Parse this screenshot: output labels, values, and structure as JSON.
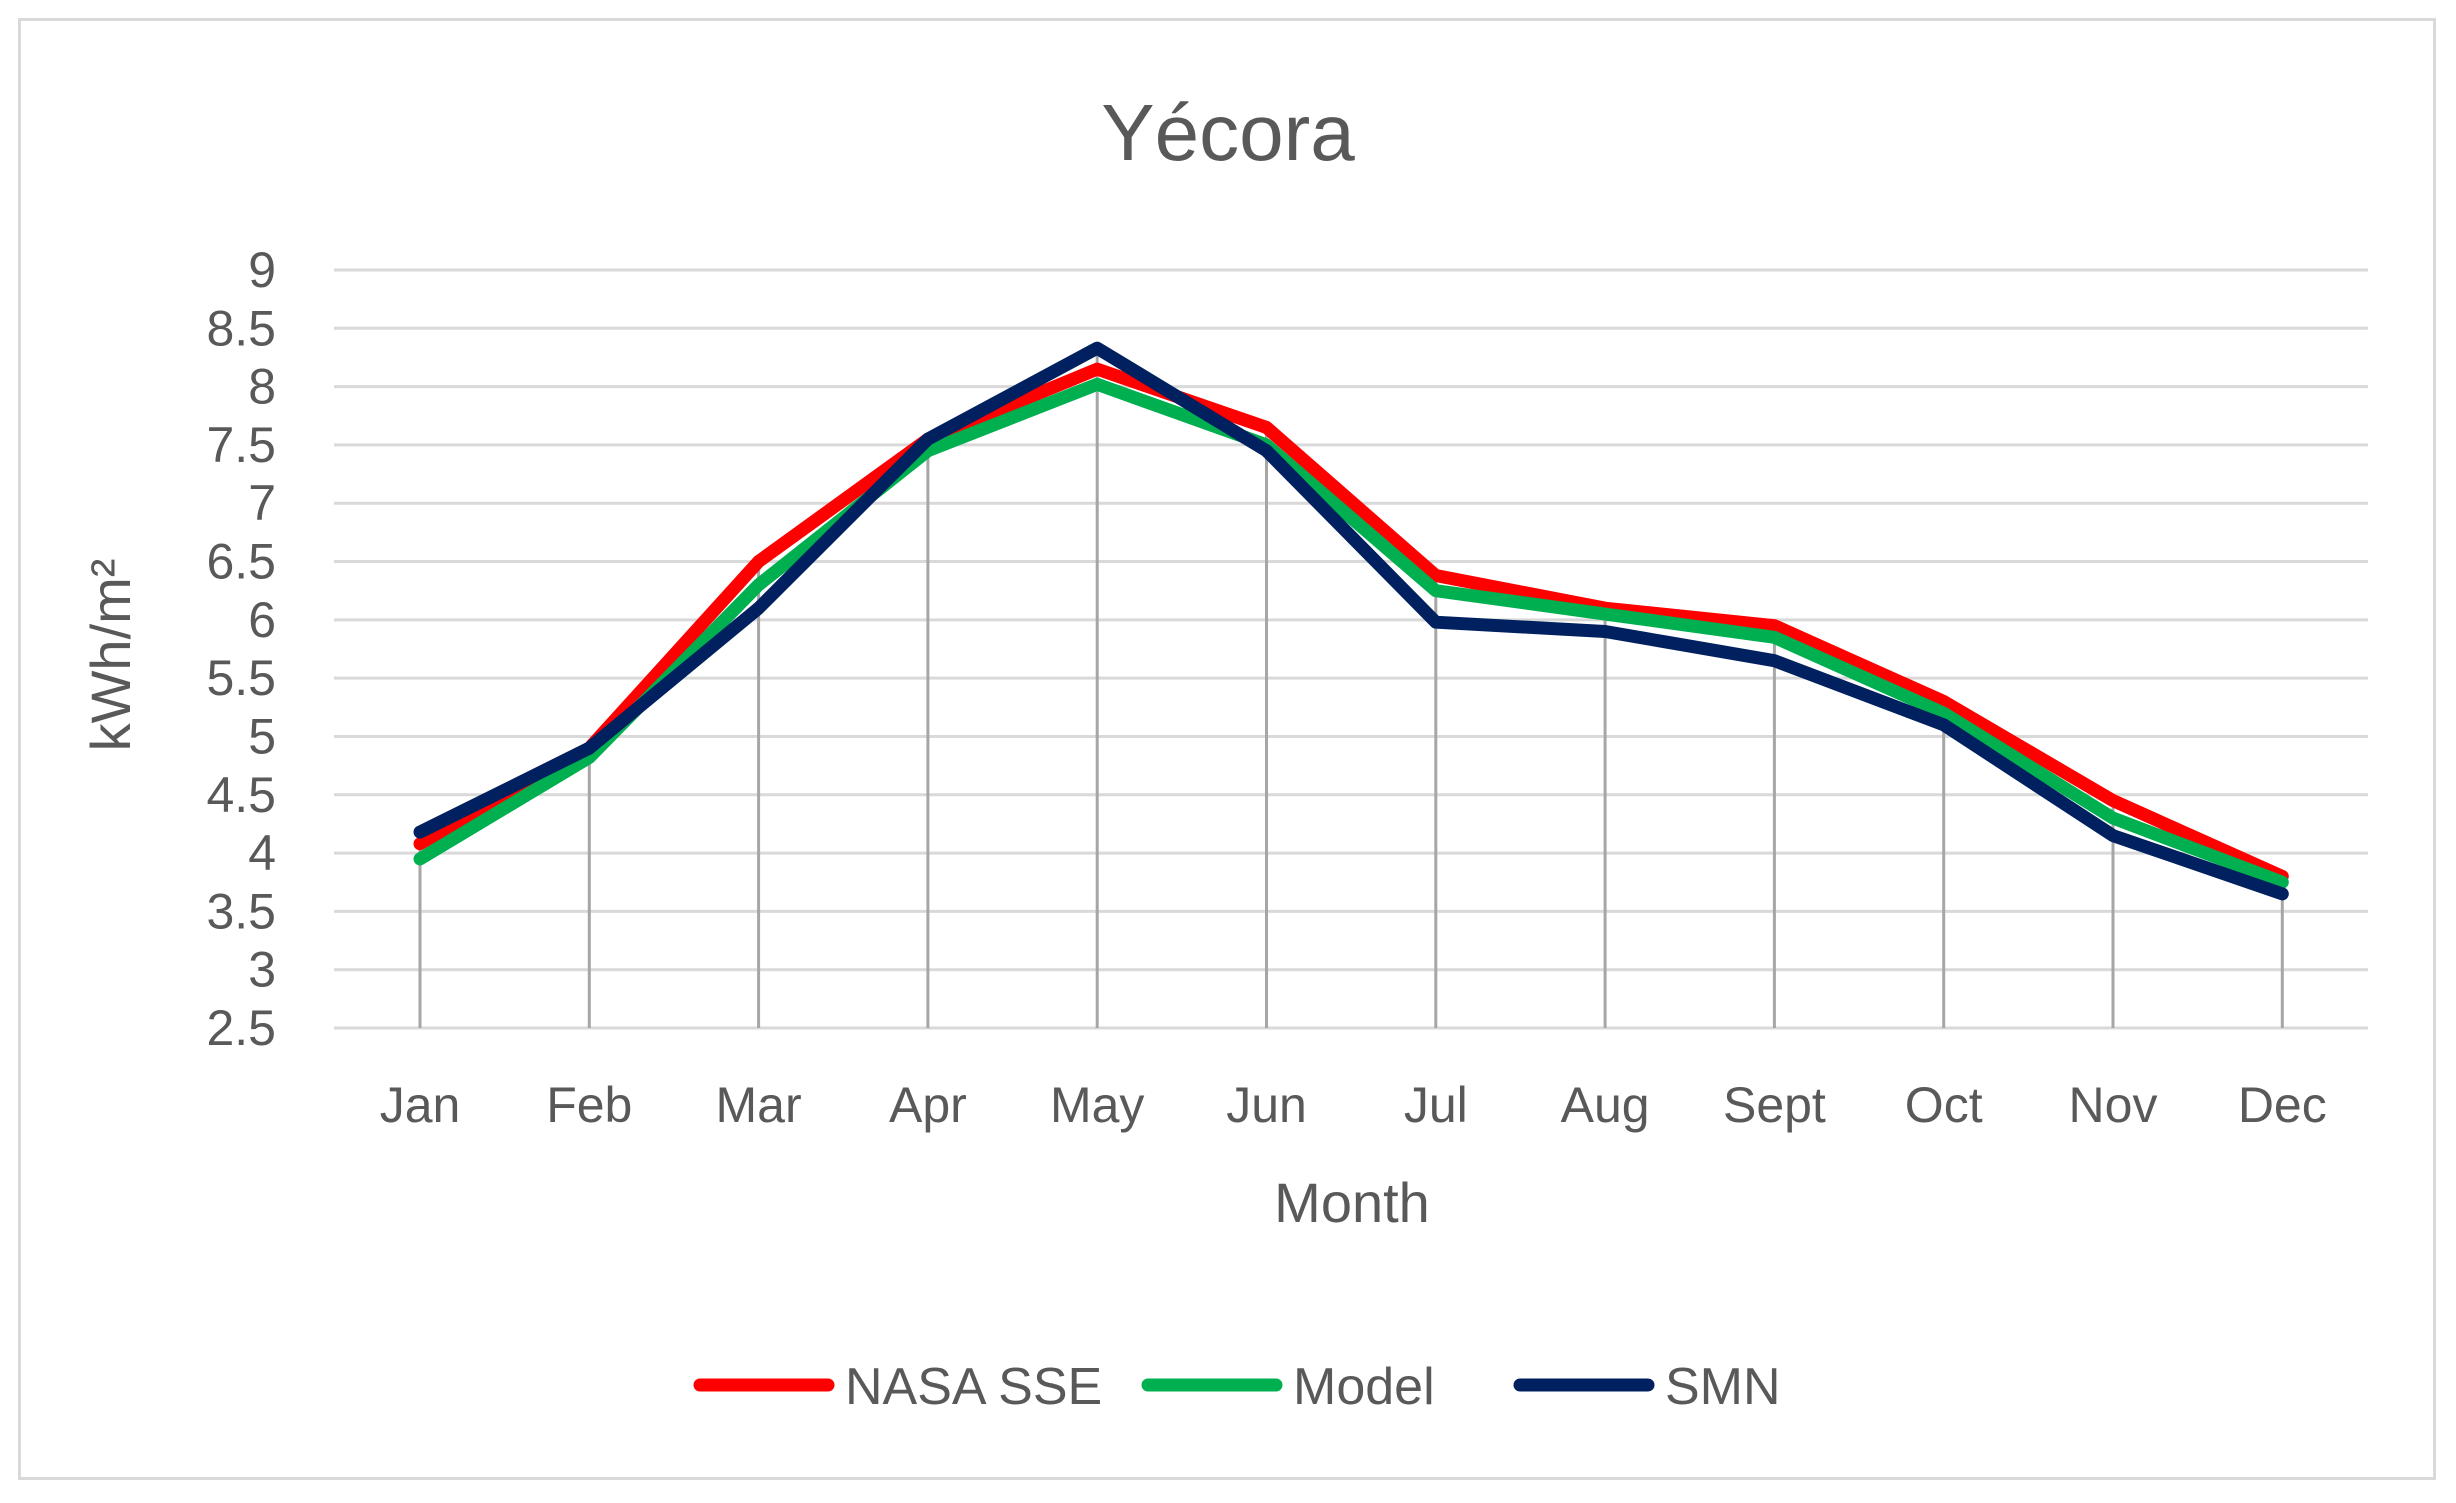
{
  "chart_data": {
    "type": "line",
    "title": "Yécora",
    "xlabel": "Month",
    "ylabel": "kWh/m²",
    "categories": [
      "Jan",
      "Feb",
      "Mar",
      "Apr",
      "May",
      "Jun",
      "Jul",
      "Aug",
      "Sept",
      "Oct",
      "Nov",
      "Dec"
    ],
    "ylim": [
      2.5,
      9
    ],
    "yticks": [
      2.5,
      3,
      3.5,
      4,
      4.5,
      5,
      5.5,
      6,
      6.5,
      7,
      7.5,
      8,
      8.5,
      9
    ],
    "ytick_labels": [
      "2.5",
      "3",
      "3.5",
      "4",
      "4.5",
      "5",
      "5.5",
      "6",
      "6.5",
      "7",
      "7.5",
      "8",
      "8.5",
      "9"
    ],
    "grid": true,
    "drop_lines": true,
    "legend_position": "bottom",
    "series": [
      {
        "name": "NASA SSE",
        "color": "#ff0000",
        "values": [
          4.08,
          4.9,
          6.5,
          7.55,
          8.15,
          7.65,
          6.38,
          6.1,
          5.95,
          5.3,
          4.45,
          3.8
        ]
      },
      {
        "name": "Model",
        "color": "#00b050",
        "values": [
          3.95,
          4.82,
          6.3,
          7.45,
          8.02,
          7.5,
          6.25,
          6.05,
          5.85,
          5.2,
          4.3,
          3.75
        ]
      },
      {
        "name": "SMN",
        "color": "#002060",
        "values": [
          4.18,
          4.9,
          6.1,
          7.55,
          8.33,
          7.45,
          5.98,
          5.9,
          5.65,
          5.1,
          4.15,
          3.65
        ]
      }
    ]
  }
}
